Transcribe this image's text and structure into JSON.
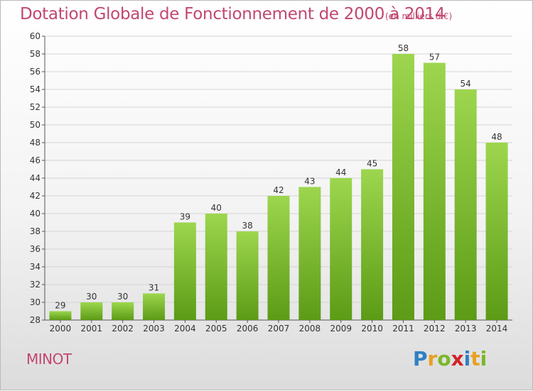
{
  "title": "Dotation Globale de Fonctionnement de 2000 à 2014",
  "subtitle": "(en milliers d'€)",
  "commune": "MINOT",
  "logo": {
    "text": "Proxiti",
    "letters": [
      {
        "ch": "P",
        "color": "#2f7fc4"
      },
      {
        "ch": "r",
        "color": "#e8a020"
      },
      {
        "ch": "o",
        "color": "#7ab828"
      },
      {
        "ch": "x",
        "color": "#d2232a"
      },
      {
        "ch": "i",
        "color": "#2f7fc4"
      },
      {
        "ch": "t",
        "color": "#e8a020"
      },
      {
        "ch": "i",
        "color": "#7ab828"
      }
    ]
  },
  "colors": {
    "title": "#c1476f",
    "bar_top": "#9dd64e",
    "bar_bottom": "#5c9b16",
    "grid": "#d4d4d4",
    "axis": "#555555"
  },
  "chart_data": {
    "type": "bar",
    "title": "Dotation Globale de Fonctionnement de 2000 à 2014",
    "subtitle": "(en milliers d'€)",
    "categories": [
      "2000",
      "2001",
      "2002",
      "2003",
      "2004",
      "2005",
      "2006",
      "2007",
      "2008",
      "2009",
      "2010",
      "2011",
      "2012",
      "2013",
      "2014"
    ],
    "values": [
      29,
      30,
      30,
      31,
      39,
      40,
      38,
      42,
      43,
      44,
      45,
      58,
      57,
      54,
      48
    ],
    "ylim": [
      28,
      60
    ],
    "ytick_step": 2,
    "grid": true,
    "legend": "none",
    "xlabel": "",
    "ylabel": ""
  }
}
